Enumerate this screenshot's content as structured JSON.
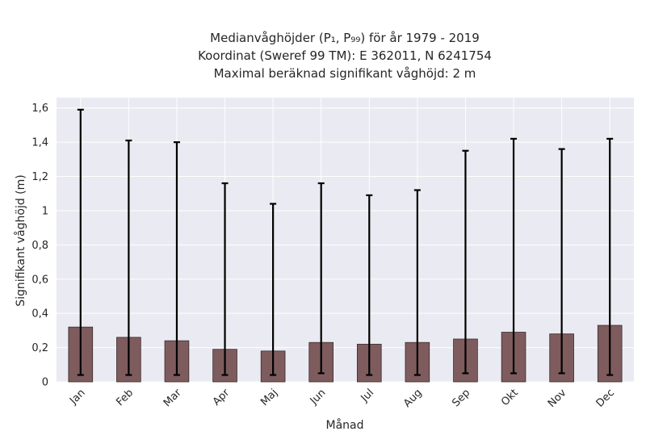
{
  "chart_data": {
    "type": "bar",
    "title_lines": [
      "Medianvåghöjder (P₁, P₉₉) för år 1979 - 2019",
      "Koordinat (Sweref 99 TM): E 362011, N 6241754",
      "Maximal beräknad signifikant våghöjd: 2 m"
    ],
    "xlabel": "Månad",
    "ylabel": "Signifikant våghöjd (m)",
    "categories": [
      "Jan",
      "Feb",
      "Mar",
      "Apr",
      "Maj",
      "Jun",
      "Jul",
      "Aug",
      "Sep",
      "Okt",
      "Nov",
      "Dec"
    ],
    "values": [
      0.32,
      0.26,
      0.24,
      0.19,
      0.18,
      0.23,
      0.22,
      0.23,
      0.25,
      0.29,
      0.28,
      0.33
    ],
    "p1": [
      0.04,
      0.04,
      0.04,
      0.04,
      0.04,
      0.05,
      0.04,
      0.04,
      0.05,
      0.05,
      0.05,
      0.04
    ],
    "p99": [
      1.59,
      1.41,
      1.4,
      1.16,
      1.04,
      1.16,
      1.09,
      1.12,
      1.35,
      1.42,
      1.36,
      1.42
    ],
    "ylim": [
      0,
      1.66
    ],
    "yticks": [
      0,
      0.2,
      0.4,
      0.6,
      0.8,
      1.0,
      1.2,
      1.4,
      1.6
    ],
    "ytick_labels": [
      "0",
      "0,2",
      "0,4",
      "0,6",
      "0,8",
      "1",
      "1,2",
      "1,4",
      "1,6"
    ],
    "grid": true,
    "colors": {
      "bar": "#7e5c5e",
      "bar_edge": "#3a2a2b",
      "errorbar": "#000000",
      "plot_bg": "#eaeaf2",
      "grid": "#ffffff"
    }
  }
}
